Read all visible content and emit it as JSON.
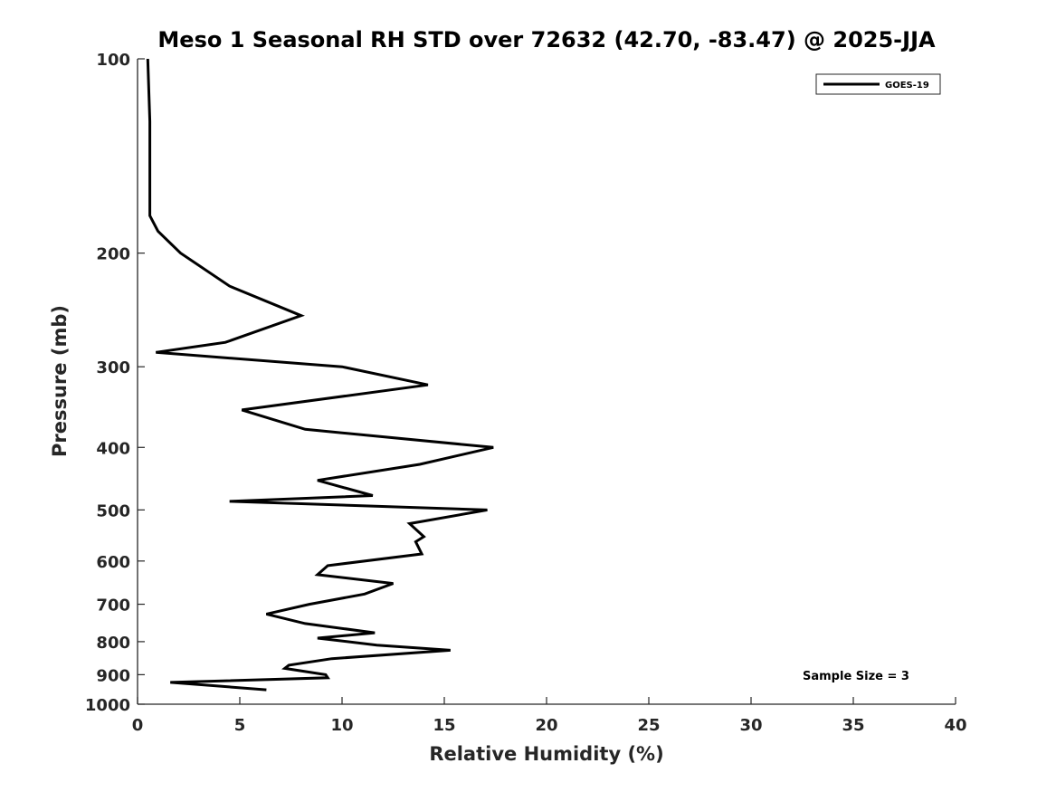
{
  "chart_data": {
    "type": "line",
    "title": "Meso 1 Seasonal RH STD over 72632 (42.70, -83.47) @ 2025-JJA",
    "xlabel": "Relative Humidity (%)",
    "ylabel": "Pressure (mb)",
    "xlim": [
      0,
      40
    ],
    "ylim": [
      1000,
      100
    ],
    "yscale": "log",
    "xticks": [
      0,
      5,
      10,
      15,
      20,
      25,
      30,
      35,
      40
    ],
    "xtick_labels": [
      "0",
      "5",
      "10",
      "15",
      "20",
      "25",
      "30",
      "35",
      "40"
    ],
    "yticks": [
      100,
      200,
      300,
      400,
      500,
      600,
      700,
      800,
      900,
      1000
    ],
    "ytick_labels": [
      "100",
      "200",
      "300",
      "400",
      "500",
      "600",
      "700",
      "800",
      "900",
      "1000"
    ],
    "grid": false,
    "legend_position": "top-right",
    "annotation": "Sample Size = 3",
    "series": [
      {
        "name": "GOES-19",
        "color": "#000000",
        "x": [
          0.5,
          0.6,
          0.6,
          0.6,
          0.6,
          1.0,
          2.1,
          4.5,
          8.0,
          4.3,
          0.9,
          10.0,
          14.2,
          5.1,
          8.2,
          17.4,
          13.8,
          8.8,
          11.5,
          4.5,
          17.1,
          13.3,
          14.0,
          13.6,
          13.9,
          9.3,
          8.8,
          12.5,
          11.1,
          8.4,
          6.3,
          8.2,
          11.6,
          8.8,
          11.7,
          15.3,
          9.5,
          7.4,
          7.2,
          9.2,
          9.3,
          1.6,
          6.3
        ],
        "y": [
          100,
          125,
          150,
          165,
          175,
          185,
          200,
          225,
          250,
          275,
          285,
          300,
          320,
          350,
          375,
          400,
          425,
          450,
          475,
          485,
          500,
          525,
          550,
          560,
          585,
          610,
          630,
          650,
          675,
          700,
          725,
          750,
          775,
          790,
          810,
          825,
          850,
          870,
          880,
          900,
          910,
          925,
          950
        ]
      }
    ]
  }
}
